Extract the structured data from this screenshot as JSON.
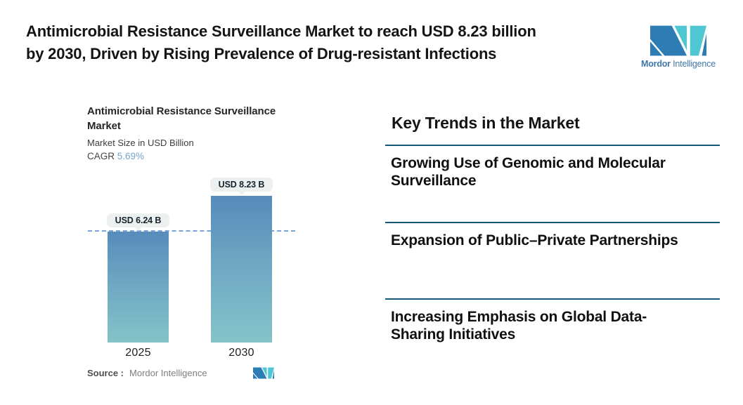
{
  "header": {
    "title": "Antimicrobial Resistance Surveillance Market to reach USD 8.23 billion\nby 2030, Driven by Rising Prevalence of Drug-resistant Infections",
    "logo": {
      "bold_part": "Mordor",
      "regular_part": "Intelligence"
    }
  },
  "chart": {
    "title": "Antimicrobial Resistance Surveillance\nMarket",
    "subtitle": "Market Size in USD Billion",
    "cagr_label": "CAGR",
    "cagr_value": "5.69%",
    "source_label": "Source :",
    "source_value": "Mordor Intelligence"
  },
  "chart_data": {
    "type": "bar",
    "title": "Antimicrobial Resistance Surveillance Market",
    "ylabel": "Market Size in USD Billion",
    "cagr": "5.69%",
    "categories": [
      "2025",
      "2030"
    ],
    "values": [
      6.24,
      8.23
    ],
    "value_labels": [
      "USD 6.24 B",
      "USD 8.23 B"
    ],
    "unit": "USD Billion",
    "baseline_marker_value": 6.24,
    "grid": false,
    "legend": false
  },
  "trends": {
    "heading": "Key Trends in the Market",
    "items": [
      "Growing Use of Genomic and Molecular\nSurveillance",
      "Expansion of Public–Private Partnerships",
      "Increasing Emphasis on Global Data-\nSharing Initiatives"
    ]
  },
  "colors": {
    "logo_teal": "#4fc7d2",
    "logo_blue": "#2d7cb4",
    "logo_text": "#4077a8",
    "separator": "#15587a",
    "bar_top": "#578bbb",
    "bar_bottom": "#84c3c9",
    "dashed_line": "#79a3d4",
    "badge_bg": "#ecf1ef",
    "cagr_value": "#74a3ce"
  }
}
